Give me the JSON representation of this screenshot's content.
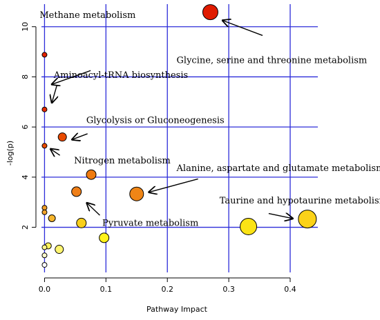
{
  "chart_data": {
    "type": "scatter",
    "xlabel": "Pathway Impact",
    "ylabel": "-log(p)",
    "xlim": [
      -0.005,
      0.445
    ],
    "ylim": [
      0.2,
      10.9
    ],
    "x_ticks": [
      0.0,
      0.1,
      0.2,
      0.3,
      0.4
    ],
    "x_tick_labels": [
      "0.0",
      "0.1",
      "0.2",
      "0.3",
      "0.4"
    ],
    "y_ticks": [
      2,
      4,
      6,
      8,
      10
    ],
    "y_tick_labels": [
      "2",
      "4",
      "6",
      "8",
      "10"
    ],
    "grid": true,
    "grid_color": "#2b2bd9",
    "points": [
      {
        "x": 0.27,
        "y": 10.58,
        "r": 11,
        "color": "#e01b00"
      },
      {
        "x": 0.0,
        "y": 8.88,
        "r": 3.5,
        "color": "#e32200"
      },
      {
        "x": 0.0,
        "y": 6.7,
        "r": 3.5,
        "color": "#e52a00"
      },
      {
        "x": 0.0,
        "y": 5.25,
        "r": 3.5,
        "color": "#e94b00"
      },
      {
        "x": 0.029,
        "y": 5.6,
        "r": 6,
        "color": "#e84a00"
      },
      {
        "x": 0.076,
        "y": 4.1,
        "r": 7,
        "color": "#ef7a0f"
      },
      {
        "x": 0.052,
        "y": 3.42,
        "r": 7,
        "color": "#ef7f18"
      },
      {
        "x": 0.15,
        "y": 3.33,
        "r": 10,
        "color": "#ef8516"
      },
      {
        "x": 0.0,
        "y": 2.78,
        "r": 3.5,
        "color": "#f19e28"
      },
      {
        "x": 0.0,
        "y": 2.6,
        "r": 3.5,
        "color": "#f3a42c"
      },
      {
        "x": 0.012,
        "y": 2.36,
        "r": 5,
        "color": "#f6b52c"
      },
      {
        "x": 0.06,
        "y": 2.17,
        "r": 7,
        "color": "#f9cf1c"
      },
      {
        "x": 0.332,
        "y": 2.03,
        "r": 12,
        "color": "#fbe315"
      },
      {
        "x": 0.428,
        "y": 2.33,
        "r": 13,
        "color": "#fbd218"
      },
      {
        "x": 0.097,
        "y": 1.58,
        "r": 7,
        "color": "#fff21a"
      },
      {
        "x": 0.006,
        "y": 1.26,
        "r": 4.5,
        "color": "#fff35c"
      },
      {
        "x": 0.0,
        "y": 1.2,
        "r": 3.5,
        "color": "#fff68a"
      },
      {
        "x": 0.024,
        "y": 1.12,
        "r": 6,
        "color": "#fff570"
      },
      {
        "x": 0.0,
        "y": 0.88,
        "r": 3.5,
        "color": "#fffbcc"
      },
      {
        "x": 0.0,
        "y": 0.5,
        "r": 3.5,
        "color": "#ffffff"
      }
    ],
    "annotations": [
      {
        "text": "Methane metabolism",
        "tx": 0.118,
        "ty": 9.1,
        "ax0": 0.075,
        "ay0": 8.25,
        "ax1": 0.012,
        "ay1": 7.7,
        "anchor": "start",
        "lx": -0.008,
        "ly": 10.35
      },
      {
        "text": "Glycine, serine and threonine metabolism",
        "tx": 0.355,
        "ty": 9.5,
        "ax0": 0.355,
        "ay0": 9.65,
        "ax1": 0.29,
        "ay1": 10.25,
        "anchor": "start",
        "lx": 0.215,
        "ly": 8.55
      },
      {
        "text": "Aminoacyl-tRNA biosynthesis",
        "tx": 0.0,
        "ty": 0.0,
        "ax0": 0.02,
        "ay0": 7.65,
        "ax1": 0.012,
        "ay1": 6.97,
        "anchor": "start",
        "lx": 0.015,
        "ly": 7.95
      },
      {
        "text": "Glycolysis or Gluconeogenesis",
        "tx": 0.0,
        "ty": 0.0,
        "ax0": 0.07,
        "ay0": 5.73,
        "ax1": 0.045,
        "ay1": 5.5,
        "anchor": "start",
        "lx": 0.068,
        "ly": 6.15
      },
      {
        "text": "Nitrogen metabolism",
        "tx": 0.0,
        "ty": 0.0,
        "ax0": 0.025,
        "ay0": 4.87,
        "ax1": 0.01,
        "ay1": 5.12,
        "anchor": "start",
        "lx": 0.048,
        "ly": 4.55
      },
      {
        "text": "Alanine, aspartate and glutamate metabolism",
        "tx": 0.0,
        "ty": 0.0,
        "ax0": 0.25,
        "ay0": 3.93,
        "ax1": 0.17,
        "ay1": 3.4,
        "anchor": "start",
        "lx": 0.215,
        "ly": 4.25
      },
      {
        "text": "Pyruvate metabolism",
        "tx": 0.0,
        "ty": 0.0,
        "ax0": 0.09,
        "ay0": 2.48,
        "ax1": 0.069,
        "ay1": 2.97,
        "anchor": "start",
        "lx": 0.094,
        "ly": 2.05
      },
      {
        "text": "Taurine and hypotaurine metabolism",
        "tx": 0.0,
        "ty": 0.0,
        "ax0": 0.365,
        "ay0": 2.55,
        "ax1": 0.404,
        "ay1": 2.35,
        "anchor": "start",
        "lx": 0.285,
        "ly": 2.95
      }
    ]
  }
}
